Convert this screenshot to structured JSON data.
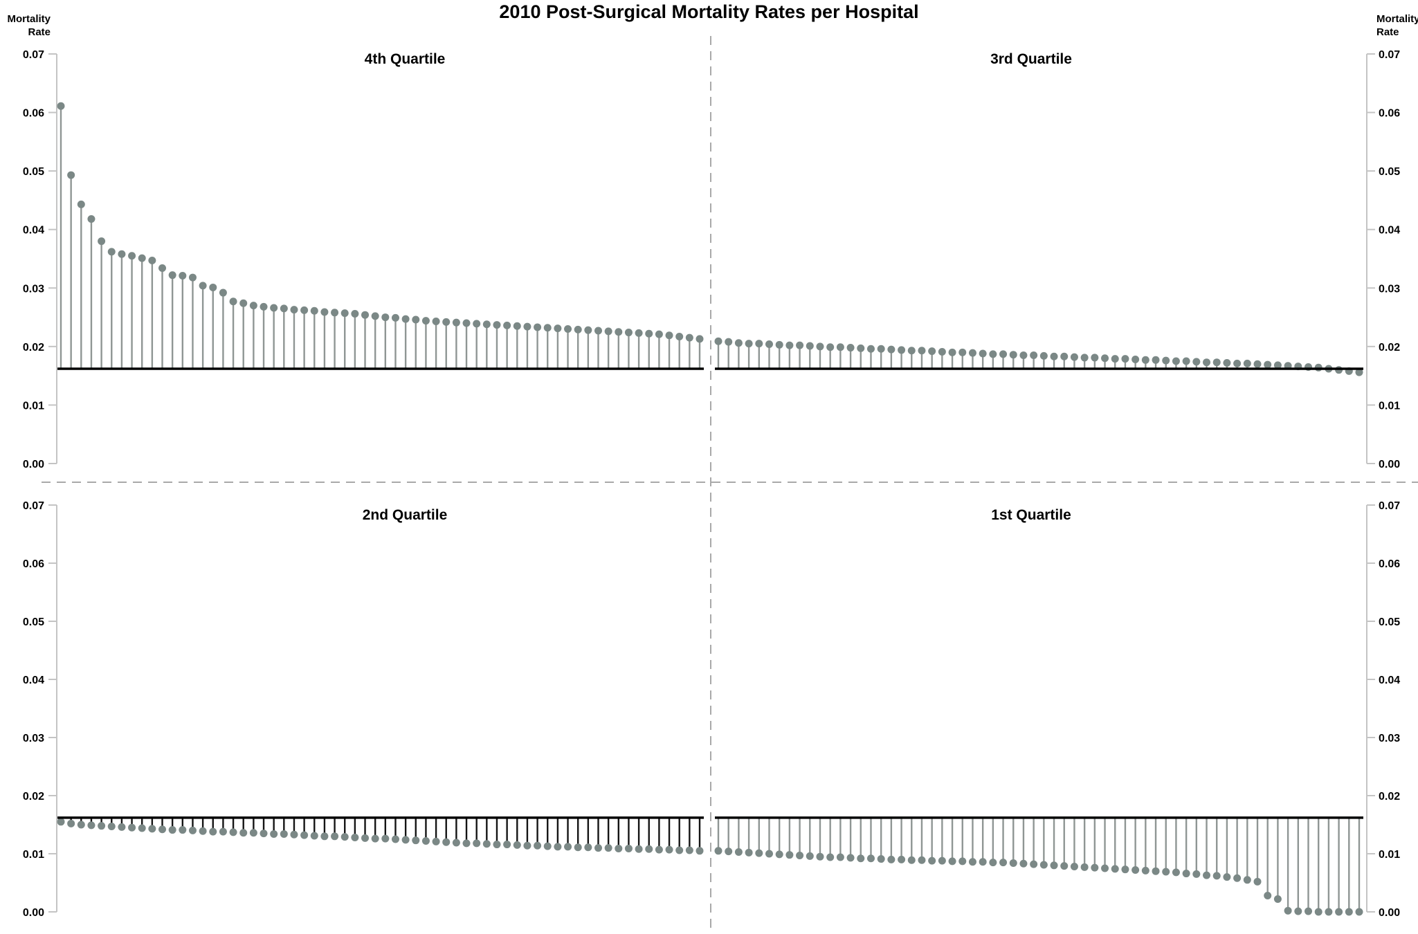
{
  "page": {
    "background": "#ffffff"
  },
  "chart_data": {
    "type": "lollipop",
    "title": "2010 Post-Surgical Mortality Rates per Hospital",
    "y_axis": {
      "label": "Mortality Rate",
      "label_lines": [
        "Mortality",
        "Rate"
      ],
      "ticks": [
        "0.07",
        "0.06",
        "0.05",
        "0.04",
        "0.03",
        "0.02",
        "0.01",
        "0.00"
      ],
      "tick_values": [
        0.07,
        0.06,
        0.05,
        0.04,
        0.03,
        0.02,
        0.01,
        0.0
      ],
      "range": [
        0,
        0.07
      ],
      "sides": "both"
    },
    "xlabel": "",
    "grid": "off",
    "legend": "none",
    "baseline_value": 0.0162,
    "layout": "2x2 quadrants, descending mortality left-to-right, dashed dividers between quadrants, black mean baseline in every quadrant",
    "quadrants": [
      {
        "name": "4th Quartile",
        "position": "top-left",
        "stem_color": "#8f9694",
        "values": [
          0.0611,
          0.0493,
          0.0443,
          0.0418,
          0.038,
          0.0362,
          0.0358,
          0.0355,
          0.0351,
          0.0347,
          0.0334,
          0.0322,
          0.0321,
          0.0318,
          0.0304,
          0.0301,
          0.0292,
          0.0277,
          0.0274,
          0.027,
          0.0268,
          0.0266,
          0.0265,
          0.0263,
          0.0262,
          0.0261,
          0.0259,
          0.0258,
          0.0257,
          0.0256,
          0.0254,
          0.0252,
          0.025,
          0.0249,
          0.0247,
          0.0246,
          0.0244,
          0.0243,
          0.0242,
          0.0241,
          0.024,
          0.0239,
          0.0238,
          0.0237,
          0.0236,
          0.0235,
          0.0234,
          0.0233,
          0.0232,
          0.0231,
          0.023,
          0.0229,
          0.0228,
          0.0227,
          0.0226,
          0.0225,
          0.0224,
          0.0223,
          0.0222,
          0.0221,
          0.0219,
          0.0217,
          0.0215,
          0.0213
        ]
      },
      {
        "name": "3rd Quartile",
        "position": "top-right",
        "stem_color": "#8f9694",
        "values": [
          0.0209,
          0.0208,
          0.0206,
          0.0205,
          0.0205,
          0.0204,
          0.0203,
          0.0202,
          0.0202,
          0.0201,
          0.02,
          0.0199,
          0.0199,
          0.0198,
          0.0197,
          0.0196,
          0.0196,
          0.0195,
          0.0194,
          0.0193,
          0.0193,
          0.0192,
          0.0191,
          0.019,
          0.019,
          0.0189,
          0.0188,
          0.0187,
          0.0187,
          0.0186,
          0.0185,
          0.0185,
          0.0184,
          0.0183,
          0.0183,
          0.0182,
          0.0181,
          0.0181,
          0.018,
          0.0179,
          0.0179,
          0.0178,
          0.0177,
          0.0177,
          0.0176,
          0.0175,
          0.0175,
          0.0174,
          0.0173,
          0.0173,
          0.0172,
          0.0171,
          0.0171,
          0.017,
          0.0169,
          0.0168,
          0.0167,
          0.0166,
          0.0165,
          0.0164,
          0.0162,
          0.016,
          0.0158,
          0.0156
        ]
      },
      {
        "name": "2nd Quartile",
        "position": "bottom-left",
        "stem_color": "#141414",
        "values": [
          0.0155,
          0.0152,
          0.015,
          0.0149,
          0.0148,
          0.0147,
          0.0146,
          0.0145,
          0.0144,
          0.0143,
          0.0142,
          0.0141,
          0.0141,
          0.014,
          0.0139,
          0.0138,
          0.0138,
          0.0137,
          0.0136,
          0.0136,
          0.0135,
          0.0134,
          0.0134,
          0.0133,
          0.0132,
          0.0131,
          0.013,
          0.013,
          0.0129,
          0.0128,
          0.0127,
          0.0126,
          0.0126,
          0.0125,
          0.0124,
          0.0123,
          0.0122,
          0.0121,
          0.012,
          0.0119,
          0.0118,
          0.0118,
          0.0117,
          0.0116,
          0.0116,
          0.0115,
          0.0114,
          0.0114,
          0.0113,
          0.0112,
          0.0112,
          0.0111,
          0.0111,
          0.011,
          0.011,
          0.0109,
          0.0109,
          0.0108,
          0.0108,
          0.0107,
          0.0107,
          0.0106,
          0.0106,
          0.0105
        ]
      },
      {
        "name": "1st Quartile",
        "position": "bottom-right",
        "stem_color": "#8f9694",
        "values": [
          0.0105,
          0.0104,
          0.0103,
          0.0102,
          0.0101,
          0.01,
          0.0099,
          0.0098,
          0.0097,
          0.0096,
          0.0095,
          0.0094,
          0.0094,
          0.0093,
          0.0092,
          0.0092,
          0.0091,
          0.009,
          0.009,
          0.0089,
          0.0089,
          0.0088,
          0.0088,
          0.0087,
          0.0087,
          0.0086,
          0.0086,
          0.0085,
          0.0085,
          0.0084,
          0.0083,
          0.0082,
          0.0081,
          0.008,
          0.0079,
          0.0078,
          0.0077,
          0.0076,
          0.0075,
          0.0074,
          0.0073,
          0.0072,
          0.0071,
          0.007,
          0.0069,
          0.0068,
          0.0066,
          0.0065,
          0.0063,
          0.0062,
          0.006,
          0.0058,
          0.0055,
          0.0052,
          0.0028,
          0.0022,
          0.0002,
          0.0001,
          0.0001,
          0.0,
          0.0,
          0.0,
          0.0,
          0.0
        ]
      }
    ],
    "colors": {
      "dot": "#7b8886",
      "stem": "#8f9694",
      "stem_2nd_quartile": "#141414",
      "baseline": "#000000",
      "axis": "#c4c4c4",
      "divider": "#a9a9a9",
      "text": "#000000",
      "background": "#ffffff"
    }
  }
}
